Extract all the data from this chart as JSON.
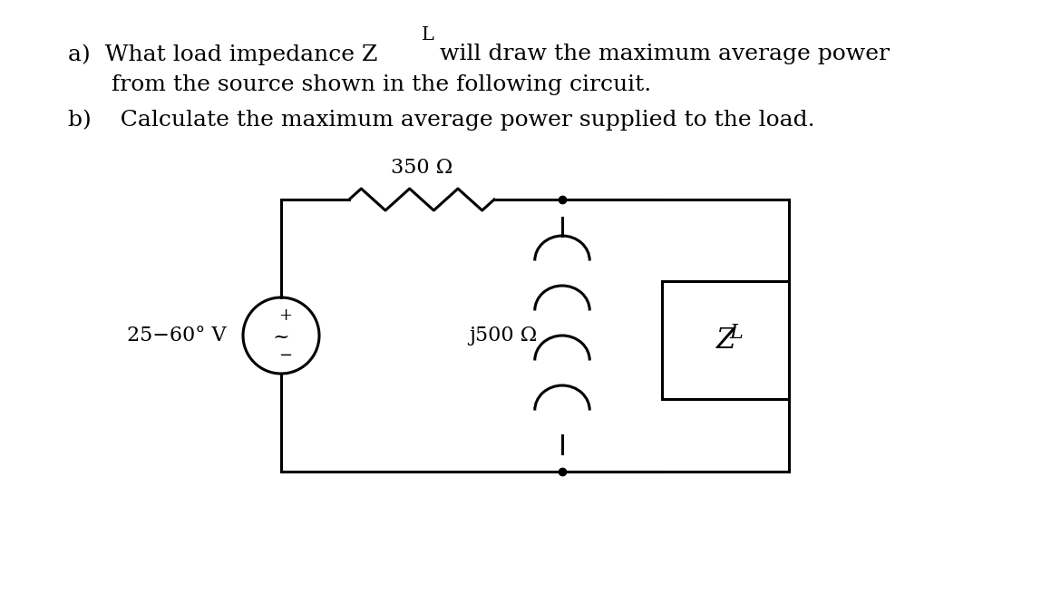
{
  "background_color": "#ffffff",
  "text_a_line1": "a)  What load impedance Z",
  "text_a_sub": "L",
  "text_a_line1_after": " will draw the maximum average power",
  "text_a_line2": "      from the source shown in the following circuit.",
  "text_b": "b)    Calculate the maximum average power supplied to the load.",
  "resistor_label": "350 Ω",
  "inductor_label": "j500 Ω",
  "source_label": "25−60° V",
  "zl_label": "Z",
  "zl_sub": "L",
  "font_size_text": 18,
  "font_size_circuit": 16,
  "circuit_color": "#000000"
}
